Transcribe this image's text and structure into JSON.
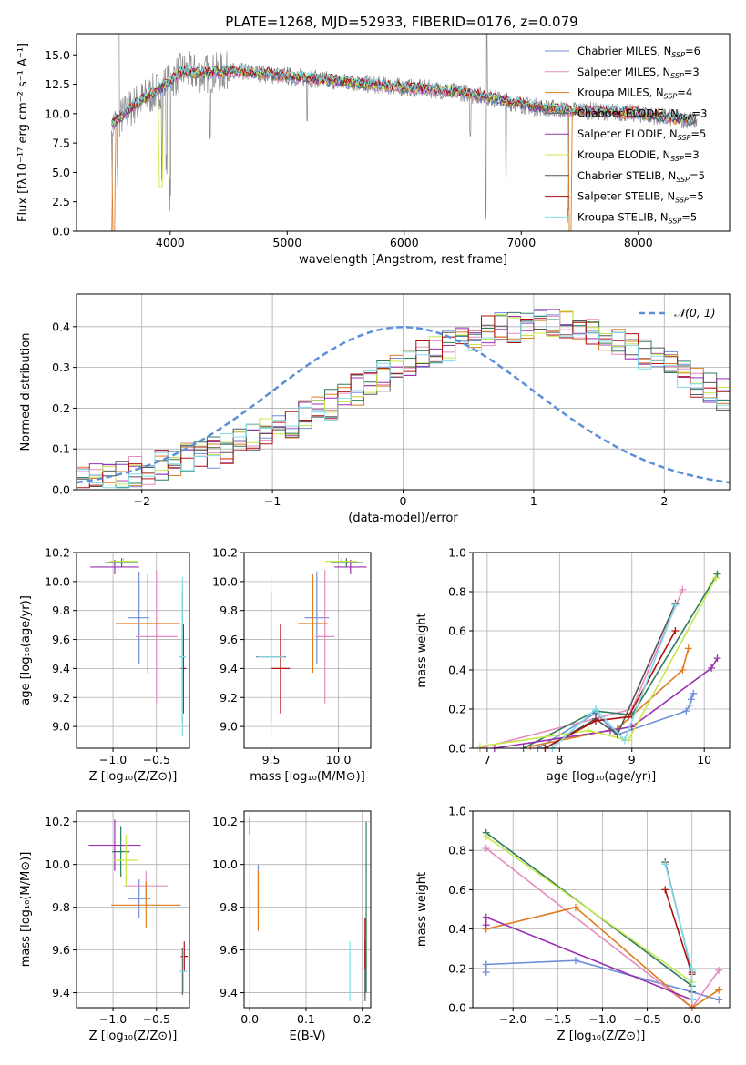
{
  "title": "PLATE=1268, MJD=52933, FIBERID=0176, z=0.079",
  "colors": {
    "Chabrier MILES": "#6f8fd8",
    "Salpeter MILES": "#e68bbf",
    "Kroupa MILES": "#e07b20",
    "Chabrier ELODIE": "#2e7d5b",
    "Salpeter ELODIE": "#9b30b0",
    "Kroupa ELODIE": "#c8e84a",
    "Chabrier STELIB": "#555555",
    "Salpeter STELIB": "#b01010",
    "Kroupa STELIB": "#80dcea",
    "data": "#888888",
    "normal": "#5b8fd6"
  },
  "chart_data": [
    {
      "type": "line",
      "name": "spectrum",
      "xlabel": "wavelength [Angstrom, rest frame]",
      "ylabel": "Flux [fλ10⁻¹⁷ erg cm⁻² s⁻¹ A⁻¹]",
      "xlim": [
        3200,
        8780
      ],
      "ylim": [
        0,
        16.8
      ],
      "xticks": [
        4000,
        5000,
        6000,
        7000,
        8000
      ],
      "yticks": [
        0,
        2.5,
        5.0,
        7.5,
        10.0,
        12.5,
        15.0
      ],
      "grid": false,
      "legend_position": "top-right",
      "continuum": {
        "x": [
          3500,
          3700,
          3900,
          4100,
          4300,
          4500,
          4700,
          5000,
          5300,
          5600,
          5900,
          6200,
          6500,
          6800,
          7100,
          7400,
          7700,
          8000,
          8300,
          8500
        ],
        "y": [
          9.0,
          10.8,
          12.0,
          13.6,
          13.4,
          13.6,
          13.5,
          13.2,
          12.9,
          12.6,
          12.3,
          12.1,
          11.8,
          11.2,
          10.6,
          10.3,
          10.2,
          10.0,
          9.6,
          9.4
        ]
      },
      "series": [
        {
          "name": "Chabrier MILES, N$_{SSP}$=6",
          "label_text": "Chabrier MILES, N",
          "nssp": "6"
        },
        {
          "name": "Salpeter MILES, N$_{SSP}$=3",
          "label_text": "Salpeter MILES, N",
          "nssp": "3"
        },
        {
          "name": "Kroupa MILES, N$_{SSP}$=4",
          "label_text": "Kroupa MILES, N",
          "nssp": "4"
        },
        {
          "name": "Chabrier ELODIE, N$_{SSP}$=3",
          "label_text": "Chabrier ELODIE, N",
          "nssp": "3"
        },
        {
          "name": "Salpeter ELODIE, N$_{SSP}$=5",
          "label_text": "Salpeter ELODIE, N",
          "nssp": "5"
        },
        {
          "name": "Kroupa ELODIE, N$_{SSP}$=3",
          "label_text": "Kroupa ELODIE, N",
          "nssp": "3"
        },
        {
          "name": "Chabrier STELIB, N$_{SSP}$=5",
          "label_text": "Chabrier STELIB, N",
          "nssp": "5"
        },
        {
          "name": "Salpeter STELIB, N$_{SSP}$=5",
          "label_text": "Salpeter STELIB, N",
          "nssp": "5"
        },
        {
          "name": "Kroupa STELIB, N$_{SSP}$=5",
          "label_text": "Kroupa STELIB, N",
          "nssp": "5"
        }
      ]
    },
    {
      "type": "step",
      "name": "residual histogram",
      "xlabel": "(data-model)/error",
      "ylabel": "Normed distribution",
      "xlim": [
        -2.5,
        2.5
      ],
      "ylim": [
        0,
        0.48
      ],
      "xticks": [
        -2,
        -1,
        0,
        1,
        2
      ],
      "yticks": [
        0.0,
        0.1,
        0.2,
        0.3,
        0.4
      ],
      "grid": true,
      "legend": "𝒩(0, 1)",
      "bin_width": 0.1,
      "bin_start": -2.5,
      "values": [
        0.02,
        0.025,
        0.03,
        0.035,
        0.045,
        0.05,
        0.06,
        0.065,
        0.075,
        0.085,
        0.09,
        0.1,
        0.11,
        0.125,
        0.135,
        0.15,
        0.165,
        0.18,
        0.195,
        0.21,
        0.225,
        0.245,
        0.26,
        0.28,
        0.295,
        0.31,
        0.33,
        0.345,
        0.355,
        0.37,
        0.38,
        0.39,
        0.395,
        0.4,
        0.405,
        0.41,
        0.405,
        0.4,
        0.39,
        0.385,
        0.375,
        0.36,
        0.35,
        0.335,
        0.32,
        0.3,
        0.285,
        0.265,
        0.25,
        0.235,
        0.215,
        0.2,
        0.185,
        0.165,
        0.15,
        0.135,
        0.12,
        0.105,
        0.095,
        0.085,
        0.075,
        0.065,
        0.055,
        0.05,
        0.045,
        0.04,
        0.035,
        0.03,
        0.03,
        0.025
      ],
      "jitter": 0.04
    },
    {
      "type": "errorbar",
      "name": "Z vs age",
      "xlabel": "Z [log₁₀(Z/Z⊙)]",
      "ylabel": "age  [log₁₀(age/yr)]",
      "xlim": [
        -1.42,
        -0.12
      ],
      "ylim": [
        8.85,
        10.2
      ],
      "xticks": [
        -1.0,
        -0.5
      ],
      "yticks": [
        9.0,
        9.2,
        9.4,
        9.6,
        9.8,
        10.0,
        10.2
      ],
      "points": [
        {
          "s": "Chabrier MILES",
          "x": -0.7,
          "y": 9.75,
          "xe": 0.12,
          "ye": 0.32
        },
        {
          "s": "Salpeter MILES",
          "x": -0.5,
          "y": 9.62,
          "xe": 0.24,
          "ye": 0.46
        },
        {
          "s": "Kroupa MILES",
          "x": -0.6,
          "y": 9.71,
          "xe": 0.37,
          "ye": 0.34
        },
        {
          "s": "Chabrier ELODIE",
          "x": -0.9,
          "y": 10.13,
          "xe": 0.19,
          "ye": 0.03
        },
        {
          "s": "Salpeter ELODIE",
          "x": -0.98,
          "y": 10.1,
          "xe": 0.28,
          "ye": 0.05
        },
        {
          "s": "Kroupa ELODIE",
          "x": -0.88,
          "y": 10.14,
          "xe": 0.16,
          "ye": 0.02
        },
        {
          "s": "Chabrier STELIB",
          "x": -0.2,
          "y": 9.48,
          "xe": 0.03,
          "ye": 0.45
        },
        {
          "s": "Salpeter STELIB",
          "x": -0.19,
          "y": 9.4,
          "xe": 0.03,
          "ye": 0.31
        },
        {
          "s": "Kroupa STELIB",
          "x": -0.2,
          "y": 9.48,
          "xe": 0.04,
          "ye": 0.55
        }
      ]
    },
    {
      "type": "errorbar",
      "name": "mass vs age",
      "xlabel": "mass [log₁₀(M/M⊙)]",
      "ylabel": "",
      "xlim": [
        9.3,
        10.24
      ],
      "ylim": [
        8.85,
        10.2
      ],
      "xticks": [
        9.5,
        10.0
      ],
      "yticks": [
        9.0,
        9.2,
        9.4,
        9.6,
        9.8,
        10.0,
        10.2
      ],
      "points": [
        {
          "s": "Chabrier MILES",
          "x": 9.84,
          "y": 9.75,
          "xe": 0.09,
          "ye": 0.32
        },
        {
          "s": "Salpeter MILES",
          "x": 9.9,
          "y": 9.62,
          "xe": 0.07,
          "ye": 0.46
        },
        {
          "s": "Kroupa MILES",
          "x": 9.81,
          "y": 9.71,
          "xe": 0.11,
          "ye": 0.34
        },
        {
          "s": "Chabrier ELODIE",
          "x": 10.06,
          "y": 10.13,
          "xe": 0.12,
          "ye": 0.03
        },
        {
          "s": "Salpeter ELODIE",
          "x": 10.09,
          "y": 10.1,
          "xe": 0.12,
          "ye": 0.05
        },
        {
          "s": "Kroupa ELODIE",
          "x": 10.02,
          "y": 10.14,
          "xe": 0.12,
          "ye": 0.02
        },
        {
          "s": "Chabrier STELIB",
          "x": 9.5,
          "y": 9.48,
          "xe": 0.11,
          "ye": 0.45
        },
        {
          "s": "Salpeter STELIB",
          "x": 9.57,
          "y": 9.4,
          "xe": 0.07,
          "ye": 0.31
        },
        {
          "s": "Kroupa STELIB",
          "x": 9.5,
          "y": 9.48,
          "xe": 0.1,
          "ye": 0.55
        }
      ]
    },
    {
      "type": "line",
      "name": "age vs mass weight",
      "xlabel": "age  [log₁₀(age/yr)]",
      "ylabel": "mass weight",
      "xlim": [
        6.8,
        10.35
      ],
      "ylim": [
        0,
        1.0
      ],
      "xticks": [
        7,
        8,
        9,
        10
      ],
      "yticks": [
        0.0,
        0.2,
        0.4,
        0.6,
        0.8,
        1.0
      ],
      "grid": true,
      "series": [
        {
          "s": "Chabrier MILES",
          "x": [
            7.7,
            8.5,
            8.8,
            9.75,
            9.8,
            9.82,
            9.85
          ],
          "y": [
            0.0,
            0.18,
            0.07,
            0.19,
            0.22,
            0.25,
            0.28
          ]
        },
        {
          "s": "Salpeter MILES",
          "x": [
            6.9,
            9.0,
            9.7
          ],
          "y": [
            0.0,
            0.2,
            0.81
          ]
        },
        {
          "s": "Kroupa MILES",
          "x": [
            7.6,
            8.8,
            9.7,
            9.78
          ],
          "y": [
            0.01,
            0.1,
            0.4,
            0.51
          ]
        },
        {
          "s": "Chabrier ELODIE",
          "x": [
            7.5,
            8.5,
            9.0,
            10.18
          ],
          "y": [
            0.0,
            0.19,
            0.17,
            0.89
          ]
        },
        {
          "s": "Salpeter ELODIE",
          "x": [
            7.1,
            8.7,
            9.0,
            10.1,
            10.18
          ],
          "y": [
            0.0,
            0.09,
            0.11,
            0.41,
            0.46
          ]
        },
        {
          "s": "Kroupa ELODIE",
          "x": [
            6.9,
            8.4,
            8.95,
            10.16
          ],
          "y": [
            0.01,
            0.09,
            0.04,
            0.87
          ]
        },
        {
          "s": "Chabrier STELIB",
          "x": [
            7.8,
            8.5,
            8.8,
            9.6
          ],
          "y": [
            0.0,
            0.15,
            0.07,
            0.74
          ]
        },
        {
          "s": "Salpeter STELIB",
          "x": [
            7.8,
            8.5,
            8.95,
            9.6
          ],
          "y": [
            0.0,
            0.14,
            0.16,
            0.6
          ]
        },
        {
          "s": "Kroupa STELIB",
          "x": [
            7.9,
            8.5,
            8.9,
            9.6
          ],
          "y": [
            0.0,
            0.2,
            0.04,
            0.73
          ]
        }
      ]
    },
    {
      "type": "errorbar",
      "name": "Z vs mass",
      "xlabel": "Z [log₁₀(Z/Z⊙)]",
      "ylabel": "mass [log₁₀(M/M⊙)]",
      "xlim": [
        -1.42,
        -0.12
      ],
      "ylim": [
        9.33,
        10.25
      ],
      "xticks": [
        -1.0,
        -0.5
      ],
      "yticks": [
        9.4,
        9.6,
        9.8,
        10.0,
        10.2
      ],
      "points": [
        {
          "s": "Chabrier MILES",
          "x": -0.7,
          "y": 9.84,
          "xe": 0.13,
          "ye": 0.09
        },
        {
          "s": "Salpeter MILES",
          "x": -0.62,
          "y": 9.9,
          "xe": 0.25,
          "ye": 0.07
        },
        {
          "s": "Kroupa MILES",
          "x": -0.62,
          "y": 9.81,
          "xe": 0.4,
          "ye": 0.11
        },
        {
          "s": "Chabrier ELODIE",
          "x": -0.91,
          "y": 10.06,
          "xe": 0.1,
          "ye": 0.12
        },
        {
          "s": "Salpeter ELODIE",
          "x": -0.98,
          "y": 10.09,
          "xe": 0.3,
          "ye": 0.12
        },
        {
          "s": "Kroupa ELODIE",
          "x": -0.85,
          "y": 10.02,
          "xe": 0.14,
          "ye": 0.12
        },
        {
          "s": "Chabrier STELIB",
          "x": -0.2,
          "y": 9.5,
          "xe": 0.03,
          "ye": 0.11
        },
        {
          "s": "Salpeter STELIB",
          "x": -0.18,
          "y": 9.57,
          "xe": 0.04,
          "ye": 0.07
        },
        {
          "s": "Kroupa STELIB",
          "x": -0.19,
          "y": 9.5,
          "xe": 0.04,
          "ye": 0.1
        }
      ]
    },
    {
      "type": "errorbar",
      "name": "E(B-V) vs mass",
      "xlabel": "E(B-V)",
      "ylabel": "",
      "xlim": [
        -0.01,
        0.215
      ],
      "ylim": [
        9.33,
        10.25
      ],
      "xticks": [
        0.0,
        0.1,
        0.2
      ],
      "yticks": [
        9.4,
        9.6,
        9.8,
        10.0,
        10.2
      ],
      "points": [
        {
          "s": "Chabrier MILES",
          "x": 0.015,
          "y": 9.9,
          "xe": 0.0,
          "ye": 0.1
        },
        {
          "s": "Kroupa MILES",
          "x": 0.015,
          "y": 9.83,
          "xe": 0.0,
          "ye": 0.14
        },
        {
          "s": "Salpeter ELODIE",
          "x": 0.0,
          "y": 10.18,
          "xe": 0.0,
          "ye": 0.04
        },
        {
          "s": "Kroupa ELODIE",
          "x": 0.0,
          "y": 10.0,
          "xe": 0.0,
          "ye": 0.12
        },
        {
          "s": "Chabrier STELIB",
          "x": 0.205,
          "y": 9.5,
          "xe": 0.0,
          "ye": 0.14
        },
        {
          "s": "Salpeter STELIB",
          "x": 0.205,
          "y": 9.63,
          "xe": 0.0,
          "ye": 0.12
        },
        {
          "s": "Kroupa STELIB",
          "x": 0.178,
          "y": 9.5,
          "xe": 0.0,
          "ye": 0.14
        },
        {
          "s": "Chabrier ELODIE",
          "x": 0.207,
          "y": 9.8,
          "xe": 0.0,
          "ye": 0.4
        }
      ]
    },
    {
      "type": "line",
      "name": "Z vs mass weight",
      "xlabel": "Z [log₁₀(Z/Z⊙)]",
      "ylabel": "mass weight",
      "xlim": [
        -2.45,
        0.42
      ],
      "ylim": [
        0,
        1.0
      ],
      "xticks": [
        -2.0,
        -1.5,
        -1.0,
        -0.5,
        0.0
      ],
      "yticks": [
        0.0,
        0.2,
        0.4,
        0.6,
        0.8,
        1.0
      ],
      "grid": true,
      "series": [
        {
          "s": "Chabrier MILES",
          "x": [
            -2.3,
            -2.3,
            -1.3,
            0.0,
            0.3
          ],
          "y": [
            0.18,
            0.22,
            0.24,
            0.08,
            0.04
          ]
        },
        {
          "s": "Salpeter MILES",
          "x": [
            -2.3,
            0.0,
            0.3
          ],
          "y": [
            0.81,
            0.0,
            0.19
          ]
        },
        {
          "s": "Kroupa MILES",
          "x": [
            -2.3,
            -1.3,
            0.0,
            0.3
          ],
          "y": [
            0.4,
            0.51,
            0.0,
            0.09
          ]
        },
        {
          "s": "Chabrier ELODIE",
          "x": [
            -2.3,
            0.0
          ],
          "y": [
            0.89,
            0.11
          ]
        },
        {
          "s": "Salpeter ELODIE",
          "x": [
            -2.3,
            -2.3,
            0.0
          ],
          "y": [
            0.42,
            0.46,
            0.04
          ]
        },
        {
          "s": "Kroupa ELODIE",
          "x": [
            -2.3,
            0.0
          ],
          "y": [
            0.87,
            0.13
          ]
        },
        {
          "s": "Chabrier STELIB",
          "x": [
            -0.3,
            0.0,
            0.0
          ],
          "y": [
            0.74,
            0.18,
            0.08
          ]
        },
        {
          "s": "Salpeter STELIB",
          "x": [
            -0.3,
            0.0,
            0.0
          ],
          "y": [
            0.6,
            0.17,
            0.04
          ]
        },
        {
          "s": "Kroupa STELIB",
          "x": [
            -0.3,
            0.0,
            0.0
          ],
          "y": [
            0.73,
            0.19,
            0.04
          ]
        }
      ]
    }
  ]
}
